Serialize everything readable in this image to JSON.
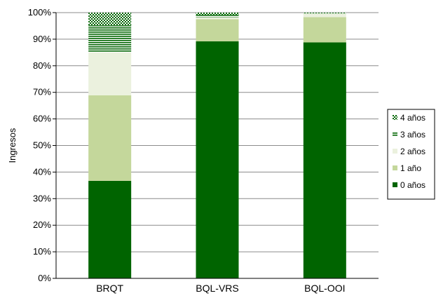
{
  "chart_data": {
    "type": "bar",
    "stacked": true,
    "categories": [
      "BRQT",
      "BQL-VRS",
      "BQL-OOI"
    ],
    "series": [
      {
        "name": "0 años",
        "values": [
          36.7,
          89.2,
          88.8
        ],
        "color": "#006400",
        "pattern": "solid"
      },
      {
        "name": "1 año",
        "values": [
          32.2,
          8.3,
          9.5
        ],
        "color": "#c4d79b",
        "pattern": "solid"
      },
      {
        "name": "2 años",
        "values": [
          16.1,
          0.8,
          1.4
        ],
        "color": "#ebf1de",
        "pattern": "solid"
      },
      {
        "name": "3 años",
        "values": [
          10.2,
          0.9,
          0.1
        ],
        "color": "#006400",
        "pattern": "horizontal-lines"
      },
      {
        "name": "4 años",
        "values": [
          4.8,
          0.8,
          0.2
        ],
        "color": "#006400",
        "pattern": "checker"
      }
    ],
    "ylabel": "Ingresos",
    "xlabel": "",
    "ylim": [
      0,
      100
    ],
    "yticks": [
      "0%",
      "10%",
      "20%",
      "30%",
      "40%",
      "50%",
      "60%",
      "70%",
      "80%",
      "90%",
      "100%"
    ],
    "grid": true,
    "legend_position": "right",
    "legend_order": [
      "4 años",
      "3 años",
      "2 años",
      "1 año",
      "0 años"
    ]
  }
}
